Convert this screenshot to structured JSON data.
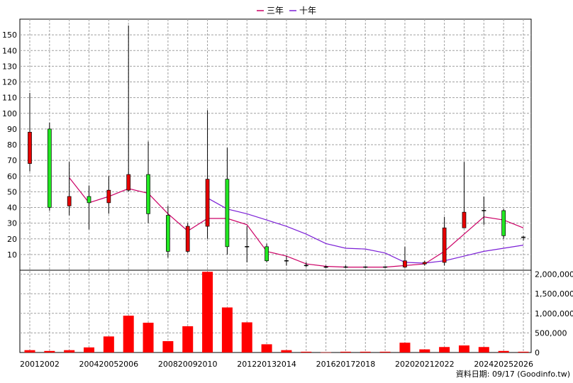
{
  "legend": [
    {
      "label": "三年",
      "color": "#cc0066"
    },
    {
      "label": "十年",
      "color": "#7b1fd6"
    }
  ],
  "footer": "資料日期: 09/17  (Goodinfo.tw)",
  "colors": {
    "up": "#e80000",
    "down": "#22e822",
    "volume": "#ff0000",
    "wick": "#000000",
    "grid": "#a0a0a0"
  },
  "chart_data": {
    "type": "candlestick",
    "price_axis": {
      "ylim": [
        0,
        160
      ],
      "ticks": [
        10,
        20,
        30,
        40,
        50,
        60,
        70,
        80,
        90,
        100,
        110,
        120,
        130,
        140,
        150
      ]
    },
    "volume_axis": {
      "ylim": [
        0,
        2100000
      ],
      "ticks": [
        0,
        500000,
        1000000,
        1500000,
        2000000
      ],
      "tick_labels": [
        "0",
        "500,000",
        "1,000,000",
        "1,500,000",
        "2,000,000"
      ]
    },
    "x_labels": [
      {
        "year": 2001,
        "label": "2001"
      },
      {
        "year": 2002,
        "label": "2002"
      },
      {
        "year": 2004,
        "label": "2004"
      },
      {
        "year": 2005,
        "label": "2005"
      },
      {
        "year": 2006,
        "label": "2006"
      },
      {
        "year": 2008,
        "label": "2008"
      },
      {
        "year": 2009,
        "label": "2009"
      },
      {
        "year": 2010,
        "label": "2010"
      },
      {
        "year": 2012,
        "label": "2012"
      },
      {
        "year": 2013,
        "label": "2013"
      },
      {
        "year": 2014,
        "label": "2014"
      },
      {
        "year": 2016,
        "label": "2016"
      },
      {
        "year": 2017,
        "label": "2017"
      },
      {
        "year": 2018,
        "label": "2018"
      },
      {
        "year": 2020,
        "label": "2020"
      },
      {
        "year": 2021,
        "label": "2021"
      },
      {
        "year": 2022,
        "label": "2022"
      },
      {
        "year": 2024,
        "label": "2024"
      },
      {
        "year": 2025,
        "label": "2025"
      },
      {
        "year": 2026,
        "label": "2026"
      }
    ],
    "candles": [
      {
        "year": 2001.0,
        "open": 68,
        "close": 88,
        "high": 113,
        "low": 63
      },
      {
        "year": 2002.0,
        "open": 90,
        "close": 40,
        "high": 94,
        "low": 38
      },
      {
        "year": 2003.0,
        "open": 41,
        "close": 47,
        "high": 69,
        "low": 35
      },
      {
        "year": 2004.0,
        "open": 47,
        "close": 43,
        "high": 54,
        "low": 26
      },
      {
        "year": 2005.0,
        "open": 43,
        "close": 51,
        "high": 60,
        "low": 36
      },
      {
        "year": 2006.0,
        "open": 51,
        "close": 61,
        "high": 156,
        "low": 50
      },
      {
        "year": 2007.0,
        "open": 61,
        "close": 36,
        "high": 82,
        "low": 30
      },
      {
        "year": 2008.0,
        "open": 35,
        "close": 12,
        "high": 41,
        "low": 8
      },
      {
        "year": 2009.0,
        "open": 12,
        "close": 28,
        "high": 30,
        "low": 11
      },
      {
        "year": 2010.0,
        "open": 28,
        "close": 58,
        "high": 102,
        "low": 20
      },
      {
        "year": 2011.0,
        "open": 58,
        "close": 15,
        "high": 78,
        "low": 10
      },
      {
        "year": 2012.0,
        "open": 15,
        "close": 15,
        "high": 28,
        "low": 5
      },
      {
        "year": 2013.0,
        "open": 15,
        "close": 6,
        "high": 17,
        "low": 5
      },
      {
        "year": 2014.0,
        "open": 6,
        "close": 6,
        "high": 9,
        "low": 3
      },
      {
        "year": 2015.0,
        "open": 3,
        "close": 3,
        "high": 5,
        "low": 2
      },
      {
        "year": 2016.0,
        "open": 2,
        "close": 2,
        "high": 3,
        "low": 1.5
      },
      {
        "year": 2017.0,
        "open": 2,
        "close": 2,
        "high": 3,
        "low": 1.5
      },
      {
        "year": 2018.0,
        "open": 2,
        "close": 2,
        "high": 2.5,
        "low": 1.5
      },
      {
        "year": 2019.0,
        "open": 2,
        "close": 2,
        "high": 2.5,
        "low": 1.5
      },
      {
        "year": 2020.0,
        "open": 2,
        "close": 6,
        "high": 15,
        "low": 1.5
      },
      {
        "year": 2021.0,
        "open": 4,
        "close": 5,
        "high": 6,
        "low": 3
      },
      {
        "year": 2022.0,
        "open": 5,
        "close": 27,
        "high": 34,
        "low": 3
      },
      {
        "year": 2023.0,
        "open": 27,
        "close": 37,
        "high": 69,
        "low": 27
      },
      {
        "year": 2024.0,
        "open": 38,
        "close": 38,
        "high": 47,
        "low": 29
      },
      {
        "year": 2025.0,
        "open": 38,
        "close": 22,
        "high": 39,
        "low": 20
      },
      {
        "year": 2026.0,
        "open": 21,
        "close": 21,
        "high": 22,
        "low": 19
      }
    ],
    "ma3": [
      {
        "year": 2003.0,
        "value": 59
      },
      {
        "year": 2004.0,
        "value": 43
      },
      {
        "year": 2005.0,
        "value": 47
      },
      {
        "year": 2006.0,
        "value": 52
      },
      {
        "year": 2007.0,
        "value": 49
      },
      {
        "year": 2008.0,
        "value": 36
      },
      {
        "year": 2009.0,
        "value": 25
      },
      {
        "year": 2010.0,
        "value": 33
      },
      {
        "year": 2011.0,
        "value": 33
      },
      {
        "year": 2012.0,
        "value": 29
      },
      {
        "year": 2013.0,
        "value": 12
      },
      {
        "year": 2014.0,
        "value": 9
      },
      {
        "year": 2015.0,
        "value": 4
      },
      {
        "year": 2016.0,
        "value": 2.5
      },
      {
        "year": 2017.0,
        "value": 2
      },
      {
        "year": 2018.0,
        "value": 2
      },
      {
        "year": 2019.0,
        "value": 2
      },
      {
        "year": 2020.0,
        "value": 3
      },
      {
        "year": 2021.0,
        "value": 4
      },
      {
        "year": 2022.0,
        "value": 12
      },
      {
        "year": 2023.0,
        "value": 23
      },
      {
        "year": 2024.0,
        "value": 34
      },
      {
        "year": 2025.0,
        "value": 32
      },
      {
        "year": 2026.0,
        "value": 27
      }
    ],
    "ma10": [
      {
        "year": 2010.0,
        "value": 46
      },
      {
        "year": 2011.0,
        "value": 39
      },
      {
        "year": 2012.0,
        "value": 36
      },
      {
        "year": 2013.0,
        "value": 32
      },
      {
        "year": 2014.0,
        "value": 28
      },
      {
        "year": 2015.0,
        "value": 23
      },
      {
        "year": 2016.0,
        "value": 17
      },
      {
        "year": 2017.0,
        "value": 14
      },
      {
        "year": 2018.0,
        "value": 13.5
      },
      {
        "year": 2019.0,
        "value": 11
      },
      {
        "year": 2020.0,
        "value": 5
      },
      {
        "year": 2021.0,
        "value": 4.5
      },
      {
        "year": 2022.0,
        "value": 6
      },
      {
        "year": 2023.0,
        "value": 9
      },
      {
        "year": 2024.0,
        "value": 12
      },
      {
        "year": 2025.0,
        "value": 14
      },
      {
        "year": 2026.0,
        "value": 16
      }
    ],
    "volume": [
      {
        "year": 2001.0,
        "value": 60000
      },
      {
        "year": 2002.0,
        "value": 40000
      },
      {
        "year": 2003.0,
        "value": 60000
      },
      {
        "year": 2004.0,
        "value": 130000
      },
      {
        "year": 2005.0,
        "value": 410000
      },
      {
        "year": 2006.0,
        "value": 940000
      },
      {
        "year": 2007.0,
        "value": 760000
      },
      {
        "year": 2008.0,
        "value": 290000
      },
      {
        "year": 2009.0,
        "value": 670000
      },
      {
        "year": 2010.0,
        "value": 2060000
      },
      {
        "year": 2011.0,
        "value": 1150000
      },
      {
        "year": 2012.0,
        "value": 770000
      },
      {
        "year": 2013.0,
        "value": 210000
      },
      {
        "year": 2014.0,
        "value": 60000
      },
      {
        "year": 2015.0,
        "value": 20000
      },
      {
        "year": 2016.0,
        "value": 5000
      },
      {
        "year": 2017.0,
        "value": 20000
      },
      {
        "year": 2018.0,
        "value": 20000
      },
      {
        "year": 2019.0,
        "value": 20000
      },
      {
        "year": 2020.0,
        "value": 250000
      },
      {
        "year": 2021.0,
        "value": 80000
      },
      {
        "year": 2022.0,
        "value": 140000
      },
      {
        "year": 2023.0,
        "value": 180000
      },
      {
        "year": 2024.0,
        "value": 140000
      },
      {
        "year": 2025.0,
        "value": 40000
      },
      {
        "year": 2026.0,
        "value": 20000
      }
    ]
  }
}
